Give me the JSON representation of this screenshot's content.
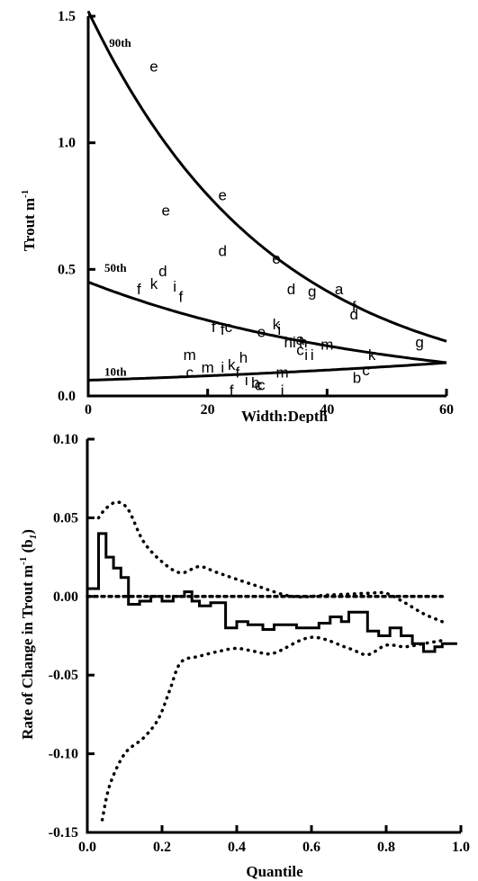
{
  "chart_data": [
    {
      "type": "scatter",
      "xlabel": "Width:Depth",
      "ylabel": "Trout  m",
      "ylabel_sup": "-1",
      "xlim": [
        0,
        60
      ],
      "ylim": [
        0,
        1.5
      ],
      "xticks": [
        "0",
        "20",
        "40",
        "60"
      ],
      "yticks": [
        "0.0",
        "0.5",
        "1.0",
        "1.5"
      ],
      "points": [
        {
          "x": 11,
          "y": 1.3,
          "label": "e"
        },
        {
          "x": 13,
          "y": 0.73,
          "label": "e"
        },
        {
          "x": 12.5,
          "y": 0.49,
          "label": "d"
        },
        {
          "x": 8.5,
          "y": 0.42,
          "label": "f"
        },
        {
          "x": 11,
          "y": 0.44,
          "label": "k"
        },
        {
          "x": 14.5,
          "y": 0.43,
          "label": "i"
        },
        {
          "x": 15.5,
          "y": 0.39,
          "label": "f"
        },
        {
          "x": 22.5,
          "y": 0.79,
          "label": "e"
        },
        {
          "x": 22.5,
          "y": 0.57,
          "label": "d"
        },
        {
          "x": 31.5,
          "y": 0.54,
          "label": "e"
        },
        {
          "x": 34,
          "y": 0.42,
          "label": "d"
        },
        {
          "x": 37.5,
          "y": 0.41,
          "label": "g"
        },
        {
          "x": 42,
          "y": 0.42,
          "label": "a"
        },
        {
          "x": 44.5,
          "y": 0.35,
          "label": "f"
        },
        {
          "x": 44.5,
          "y": 0.32,
          "label": "d"
        },
        {
          "x": 55.5,
          "y": 0.21,
          "label": "g"
        },
        {
          "x": 21,
          "y": 0.27,
          "label": "f"
        },
        {
          "x": 22.5,
          "y": 0.26,
          "label": "f"
        },
        {
          "x": 23.5,
          "y": 0.27,
          "label": "c"
        },
        {
          "x": 29,
          "y": 0.25,
          "label": "e"
        },
        {
          "x": 31.5,
          "y": 0.28,
          "label": "k"
        },
        {
          "x": 32,
          "y": 0.26,
          "label": "i"
        },
        {
          "x": 33.5,
          "y": 0.21,
          "label": "h"
        },
        {
          "x": 34.5,
          "y": 0.21,
          "label": "i"
        },
        {
          "x": 35.5,
          "y": 0.22,
          "label": "a"
        },
        {
          "x": 36,
          "y": 0.21,
          "label": "h"
        },
        {
          "x": 35.5,
          "y": 0.18,
          "label": "c"
        },
        {
          "x": 36.5,
          "y": 0.16,
          "label": "i"
        },
        {
          "x": 37.5,
          "y": 0.16,
          "label": "i"
        },
        {
          "x": 40,
          "y": 0.2,
          "label": "m"
        },
        {
          "x": 47.5,
          "y": 0.16,
          "label": "k"
        },
        {
          "x": 46.5,
          "y": 0.1,
          "label": "c"
        },
        {
          "x": 45,
          "y": 0.07,
          "label": "b"
        },
        {
          "x": 17,
          "y": 0.16,
          "label": "m"
        },
        {
          "x": 17,
          "y": 0.09,
          "label": "c"
        },
        {
          "x": 20,
          "y": 0.11,
          "label": "m"
        },
        {
          "x": 22.5,
          "y": 0.11,
          "label": "i"
        },
        {
          "x": 24,
          "y": 0.12,
          "label": "k"
        },
        {
          "x": 26,
          "y": 0.15,
          "label": "h"
        },
        {
          "x": 25,
          "y": 0.09,
          "label": "f"
        },
        {
          "x": 26.5,
          "y": 0.06,
          "label": "i"
        },
        {
          "x": 28,
          "y": 0.05,
          "label": "b"
        },
        {
          "x": 29,
          "y": 0.04,
          "label": "c"
        },
        {
          "x": 28.5,
          "y": 0.04,
          "label": "c"
        },
        {
          "x": 24,
          "y": 0.02,
          "label": "f"
        },
        {
          "x": 32.5,
          "y": 0.09,
          "label": "m"
        },
        {
          "x": 32.5,
          "y": 0.02,
          "label": "i"
        }
      ],
      "curves": [
        {
          "label": "90th",
          "a": 1.52,
          "b": -0.0325
        },
        {
          "label": "50th",
          "a": 0.45,
          "b": -0.0205
        },
        {
          "label": "10th",
          "a": 0.062,
          "b": 0.0125
        }
      ]
    },
    {
      "type": "line",
      "xlabel": "Quantile",
      "ylabel": "Rate of Change in Trout m",
      "ylabel_sup": "-1",
      "ylabel_tail": "(b",
      "ylabel_sub": "1",
      "ylabel_end": ")",
      "xlim": [
        0,
        1
      ],
      "ylim": [
        -0.15,
        0.1
      ],
      "xticks": [
        "0.0",
        "0.2",
        "0.4",
        "0.6",
        "0.8",
        "1.0"
      ],
      "yticks": [
        "0.10",
        "0.05",
        "0.00",
        "-0.05",
        "-0.10",
        "-0.15"
      ],
      "estimate": [
        [
          0.0,
          0.005
        ],
        [
          0.03,
          0.005
        ],
        [
          0.03,
          0.04
        ],
        [
          0.05,
          0.04
        ],
        [
          0.05,
          0.025
        ],
        [
          0.07,
          0.025
        ],
        [
          0.07,
          0.018
        ],
        [
          0.09,
          0.018
        ],
        [
          0.09,
          0.012
        ],
        [
          0.11,
          0.012
        ],
        [
          0.11,
          -0.005
        ],
        [
          0.14,
          -0.005
        ],
        [
          0.14,
          -0.003
        ],
        [
          0.17,
          -0.003
        ],
        [
          0.17,
          0.0
        ],
        [
          0.2,
          0.0
        ],
        [
          0.2,
          -0.003
        ],
        [
          0.23,
          -0.003
        ],
        [
          0.23,
          0.0
        ],
        [
          0.26,
          0.0
        ],
        [
          0.26,
          0.003
        ],
        [
          0.28,
          0.003
        ],
        [
          0.28,
          -0.003
        ],
        [
          0.3,
          -0.003
        ],
        [
          0.3,
          -0.006
        ],
        [
          0.33,
          -0.006
        ],
        [
          0.33,
          -0.004
        ],
        [
          0.37,
          -0.004
        ],
        [
          0.37,
          -0.02
        ],
        [
          0.4,
          -0.02
        ],
        [
          0.4,
          -0.016
        ],
        [
          0.43,
          -0.016
        ],
        [
          0.43,
          -0.018
        ],
        [
          0.47,
          -0.018
        ],
        [
          0.47,
          -0.021
        ],
        [
          0.5,
          -0.021
        ],
        [
          0.5,
          -0.018
        ],
        [
          0.56,
          -0.018
        ],
        [
          0.56,
          -0.02
        ],
        [
          0.62,
          -0.02
        ],
        [
          0.62,
          -0.017
        ],
        [
          0.65,
          -0.017
        ],
        [
          0.65,
          -0.013
        ],
        [
          0.68,
          -0.013
        ],
        [
          0.68,
          -0.016
        ],
        [
          0.7,
          -0.016
        ],
        [
          0.7,
          -0.01
        ],
        [
          0.75,
          -0.01
        ],
        [
          0.75,
          -0.022
        ],
        [
          0.78,
          -0.022
        ],
        [
          0.78,
          -0.025
        ],
        [
          0.81,
          -0.025
        ],
        [
          0.81,
          -0.02
        ],
        [
          0.84,
          -0.02
        ],
        [
          0.84,
          -0.025
        ],
        [
          0.87,
          -0.025
        ],
        [
          0.87,
          -0.03
        ],
        [
          0.9,
          -0.03
        ],
        [
          0.9,
          -0.035
        ],
        [
          0.93,
          -0.035
        ],
        [
          0.93,
          -0.032
        ],
        [
          0.95,
          -0.032
        ],
        [
          0.95,
          -0.03
        ],
        [
          0.99,
          -0.03
        ]
      ],
      "upper_ci": [
        [
          0.03,
          0.05
        ],
        [
          0.05,
          0.056
        ],
        [
          0.08,
          0.06
        ],
        [
          0.11,
          0.055
        ],
        [
          0.15,
          0.035
        ],
        [
          0.2,
          0.022
        ],
        [
          0.25,
          0.015
        ],
        [
          0.3,
          0.019
        ],
        [
          0.35,
          0.015
        ],
        [
          0.45,
          0.007
        ],
        [
          0.55,
          0.0
        ],
        [
          0.65,
          0.001
        ],
        [
          0.75,
          0.002
        ],
        [
          0.8,
          0.002
        ],
        [
          0.85,
          -0.004
        ],
        [
          0.9,
          -0.011
        ],
        [
          0.95,
          -0.016
        ]
      ],
      "lower_ci": [
        [
          0.04,
          -0.142
        ],
        [
          0.06,
          -0.12
        ],
        [
          0.1,
          -0.1
        ],
        [
          0.15,
          -0.09
        ],
        [
          0.19,
          -0.078
        ],
        [
          0.22,
          -0.06
        ],
        [
          0.25,
          -0.042
        ],
        [
          0.3,
          -0.038
        ],
        [
          0.35,
          -0.035
        ],
        [
          0.4,
          -0.033
        ],
        [
          0.45,
          -0.035
        ],
        [
          0.5,
          -0.036
        ],
        [
          0.6,
          -0.026
        ],
        [
          0.7,
          -0.033
        ],
        [
          0.75,
          -0.037
        ],
        [
          0.8,
          -0.031
        ],
        [
          0.85,
          -0.032
        ],
        [
          0.9,
          -0.03
        ],
        [
          0.95,
          -0.028
        ]
      ],
      "zero_line": [
        [
          0.0,
          0.0
        ],
        [
          0.95,
          0.0
        ]
      ]
    }
  ]
}
